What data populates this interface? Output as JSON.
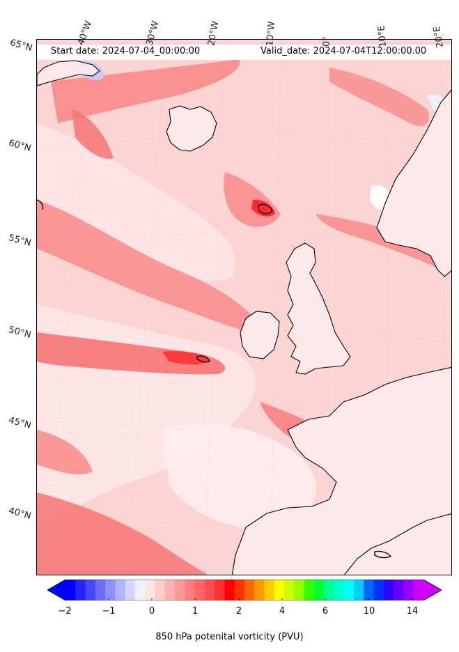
{
  "header": {
    "start_date": "Start date: 2024-07-04_00:00:00",
    "valid_date": "Valid_date: 2024-07-04T12:00:00.00"
  },
  "map": {
    "longitude_labels": [
      "40°W",
      "30°W",
      "20°W",
      "10°W",
      "0°",
      "10°E",
      "20°E"
    ],
    "latitude_labels": [
      "65°N",
      "60°N",
      "55°N",
      "50°N",
      "45°N",
      "40°N"
    ],
    "field": "850 hPa potential vorticity",
    "colors": {
      "background_level": "#fcd4d4",
      "low_pink": "#fbb6b6",
      "mid_red": "#f77474",
      "strong_red": "#ff2a2a",
      "deep_red": "#ff0000",
      "negative_blue": "#c9c9fb",
      "near_zero": "#f0f0ff",
      "coast": "#000000"
    }
  },
  "colorbar": {
    "title": "850 hPa potenital vorticity (PVU)",
    "ticks": [
      "−2",
      "−1",
      "0",
      "1",
      "2",
      "4",
      "6",
      "10",
      "14"
    ],
    "colors": [
      "#0000ff",
      "#2424ff",
      "#4747ff",
      "#6b6bff",
      "#8e8eff",
      "#b2b2ff",
      "#d5d5ff",
      "#f0f0ff",
      "#ffe5e5",
      "#ffcccc",
      "#ffb2b2",
      "#ff9999",
      "#ff7f7f",
      "#ff6666",
      "#ff4c4c",
      "#ff3232",
      "#ff0000",
      "#ff3300",
      "#ff6600",
      "#ff9900",
      "#ffcc00",
      "#ffff00",
      "#ccff00",
      "#99ff00",
      "#33ff00",
      "#00ff33",
      "#00ff99",
      "#00ffcc",
      "#00ffff",
      "#00ccff",
      "#0066ff",
      "#0033ff",
      "#3300ff",
      "#6600ff",
      "#9900ff",
      "#cc00ff"
    ]
  }
}
